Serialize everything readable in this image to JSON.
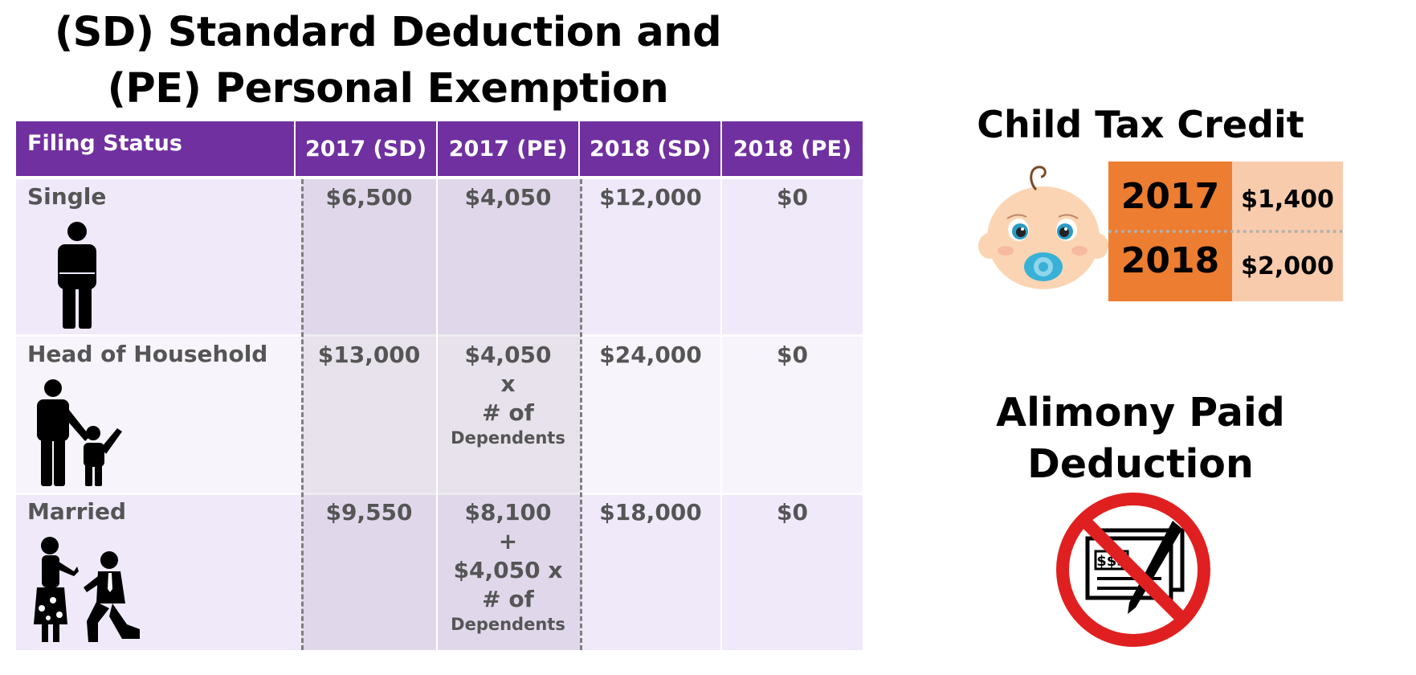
{
  "title": {
    "line1": "(SD) Standard Deduction and",
    "line2": "(PE) Personal Exemption"
  },
  "table": {
    "headers": [
      "Filing Status",
      "2017 (SD)",
      "2017 (PE)",
      "2018 (SD)",
      "2018 (PE)"
    ],
    "rows": [
      {
        "status": "Single",
        "icon": "single-person-icon",
        "sd2017": "$6,500",
        "pe2017": [
          "$4,050"
        ],
        "pe2017_small": "",
        "sd2018": "$12,000",
        "pe2018": "$0"
      },
      {
        "status": "Head of Household",
        "icon": "parent-and-child-icon",
        "sd2017": "$13,000",
        "pe2017": [
          "$4,050",
          "x",
          "# of"
        ],
        "pe2017_small": "Dependents",
        "sd2018": "$24,000",
        "pe2018": "$0"
      },
      {
        "status": "Married",
        "icon": "married-couple-proposal-icon",
        "sd2017": "$9,550",
        "pe2017": [
          "$8,100",
          "+",
          "$4,050 x",
          "# of"
        ],
        "pe2017_small": "Dependents",
        "sd2018": "$18,000",
        "pe2018": "$0"
      }
    ]
  },
  "child_tax_credit": {
    "title": "Child Tax Credit",
    "icon": "baby-with-pacifier-icon",
    "rows": [
      {
        "year": "2017",
        "amount": "$1,400"
      },
      {
        "year": "2018",
        "amount": "$2,000"
      }
    ]
  },
  "alimony": {
    "title_line1": "Alimony Paid",
    "title_line2": "Deduction",
    "icon": "no-check-signing-icon",
    "check_text": "$$$"
  },
  "colors": {
    "header_purple": "#7030a0",
    "row_lavender": "#efe9fa",
    "orange": "#ed7d31",
    "peach": "#f8cbad",
    "prohibition_red": "#e02020"
  }
}
